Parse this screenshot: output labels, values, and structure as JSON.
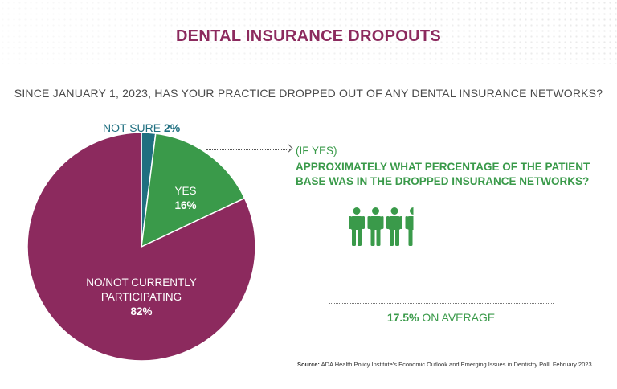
{
  "title": "DENTAL INSURANCE DROPOUTS",
  "question": "SINCE JANUARY 1, 2023, HAS YOUR PRACTICE DROPPED OUT OF ANY DENTAL INSURANCE NETWORKS?",
  "colors": {
    "no": "#8c2a5e",
    "yes": "#3a9a4a",
    "not_sure": "#1f6f80",
    "title": "#8c2a5e"
  },
  "chart_data": [
    {
      "type": "pie",
      "slices": [
        {
          "label": "NOT SURE",
          "value": 2,
          "display": "2%",
          "color": "#1f6f80"
        },
        {
          "label": "YES",
          "value": 16,
          "display": "16%",
          "color": "#3a9a4a"
        },
        {
          "label": "NO/NOT CURRENTLY PARTICIPATING",
          "value": 82,
          "display": "82%",
          "color": "#8c2a5e"
        }
      ],
      "no_label_lines": [
        "NO/NOT CURRENTLY",
        "PARTICIPATING"
      ]
    },
    {
      "type": "pictogram",
      "pre": "(IF YES)",
      "question": "APPROXIMATELY WHAT PERCENTAGE OF THE PATIENT BASE WAS IN THE DROPPED INSURANCE NETWORKS?",
      "value": 17.5,
      "total_icons": 20,
      "icon_color": "#3a9a4a",
      "summary_value": "17.5%",
      "summary_text": " ON AVERAGE"
    }
  ],
  "source": {
    "label": "Source:",
    "text": " ADA Health Policy Institute's Economic Outlook and Emerging Issues in Dentistry Poll, February 2023."
  }
}
